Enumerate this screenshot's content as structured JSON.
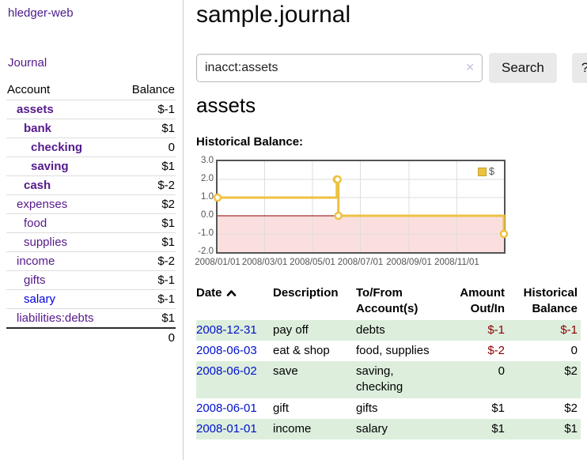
{
  "app": {
    "title": "hledger-web"
  },
  "sidebar": {
    "journal_link": "Journal",
    "accounts_table": {
      "headers": {
        "account": "Account",
        "balance": "Balance"
      },
      "rows": [
        {
          "name": "assets",
          "balance": "$-1",
          "indent": 1,
          "bold": true,
          "neg": "neg-strong",
          "link_color": "purple"
        },
        {
          "name": "bank",
          "balance": "$1",
          "indent": 2,
          "bold": true,
          "neg": "",
          "link_color": "purple"
        },
        {
          "name": "checking",
          "balance": "0",
          "indent": 3,
          "bold": true,
          "neg": "",
          "link_color": "purple"
        },
        {
          "name": "saving",
          "balance": "$1",
          "indent": 3,
          "bold": true,
          "neg": "",
          "link_color": "purple"
        },
        {
          "name": "cash",
          "balance": "$-2",
          "indent": 2,
          "bold": true,
          "neg": "neg-strong",
          "link_color": "purple"
        },
        {
          "name": "expenses",
          "balance": "$2",
          "indent": 1,
          "bold": false,
          "neg": "",
          "link_color": "purple"
        },
        {
          "name": "food",
          "balance": "$1",
          "indent": 2,
          "bold": false,
          "neg": "",
          "link_color": "purple"
        },
        {
          "name": "supplies",
          "balance": "$1",
          "indent": 2,
          "bold": false,
          "neg": "",
          "link_color": "purple"
        },
        {
          "name": "income",
          "balance": "$-2",
          "indent": 1,
          "bold": false,
          "neg": "neg-soft",
          "link_color": "purple"
        },
        {
          "name": "gifts",
          "balance": "$-1",
          "indent": 2,
          "bold": false,
          "neg": "neg-soft",
          "link_color": "purple"
        },
        {
          "name": "salary",
          "balance": "$-1",
          "indent": 2,
          "bold": false,
          "neg": "neg-soft",
          "link_color": "blue"
        },
        {
          "name": "liabilities:debts",
          "balance": "$1",
          "indent": 1,
          "bold": false,
          "neg": "",
          "link_color": "purple"
        }
      ],
      "total": "0"
    }
  },
  "header": {
    "title": "sample.journal"
  },
  "search": {
    "query": "inacct:assets",
    "clear_icon": "✕",
    "button_label": "Search",
    "help_label": "?"
  },
  "account_page": {
    "heading": "assets",
    "chart_label": "Historical Balance:"
  },
  "chart_data": {
    "type": "line",
    "title": "Historical Balance",
    "step": true,
    "series": [
      {
        "name": "$",
        "color": "#edc240",
        "points": [
          [
            "2008-01-01",
            1
          ],
          [
            "2008-06-01",
            2
          ],
          [
            "2008-06-02",
            2
          ],
          [
            "2008-06-03",
            0
          ],
          [
            "2008-12-31",
            -1
          ]
        ]
      }
    ],
    "x_range": [
      "2008-01-01",
      "2008-12-31"
    ],
    "x_ticks": [
      "2008/01/01",
      "2008/03/01",
      "2008/05/01",
      "2008/07/01",
      "2008/09/01",
      "2008/11/01"
    ],
    "y_ticks": [
      "3.0",
      "2.0",
      "1.0",
      "0.0",
      "-1.0",
      "-2.0"
    ],
    "ylim": [
      -2,
      3
    ],
    "legend_position": "top-right",
    "grid": true,
    "negative_region_color": "#fbdfdf",
    "zero_line_color": "#8b0000",
    "grid_color": "#dedede",
    "border_color": "#545454"
  },
  "register": {
    "columns": [
      {
        "label": "Date",
        "sorted": "asc"
      },
      {
        "label": "Description"
      },
      {
        "label": "To/From Account(s)"
      },
      {
        "label": "Amount Out/In"
      },
      {
        "label": "Historical Balance"
      }
    ],
    "rows": [
      {
        "date": "2008-12-31",
        "description": "pay off",
        "accounts": "debts",
        "amount": "$-1",
        "balance": "$-1"
      },
      {
        "date": "2008-06-03",
        "description": "eat & shop",
        "accounts": "food, supplies",
        "amount": "$-2",
        "balance": "0"
      },
      {
        "date": "2008-06-02",
        "description": "save",
        "accounts": "saving, checking",
        "amount": "0",
        "balance": "$2"
      },
      {
        "date": "2008-06-01",
        "description": "gift",
        "accounts": "gifts",
        "amount": "$1",
        "balance": "$2"
      },
      {
        "date": "2008-01-01",
        "description": "income",
        "accounts": "salary",
        "amount": "$1",
        "balance": "$1"
      }
    ]
  }
}
